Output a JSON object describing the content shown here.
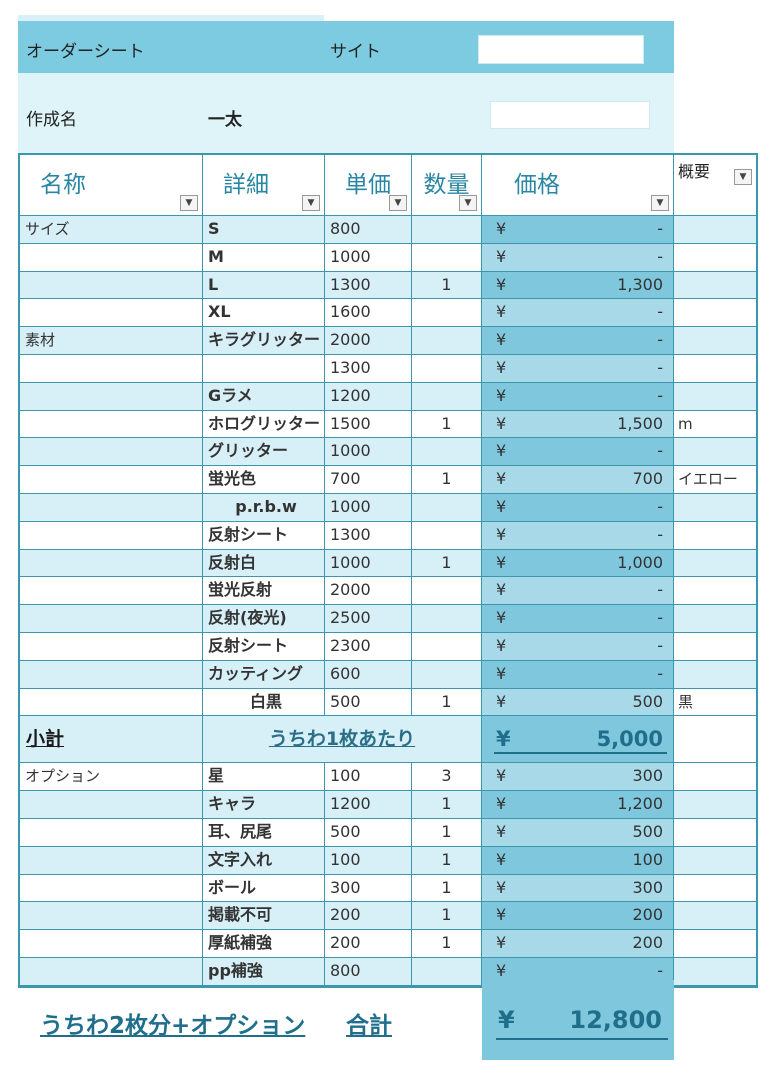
{
  "header": {
    "sheet_label": "オーダーシート",
    "site_label": "サイト",
    "creator_label": "作成名",
    "creator_value": "一太",
    "site_value": "",
    "extra_value": ""
  },
  "columns": {
    "name": "名称",
    "detail": "詳細",
    "unit_price": "単価",
    "quantity": "数量",
    "price": "価格",
    "summary": "概要",
    "filter_icon": "▼"
  },
  "currency": "¥",
  "rows": [
    {
      "name": "サイズ",
      "detail": "S",
      "unit": "800",
      "qty": "",
      "price": "-",
      "note": ""
    },
    {
      "name": "",
      "detail": "M",
      "unit": "1000",
      "qty": "",
      "price": "-",
      "note": ""
    },
    {
      "name": "",
      "detail": "L",
      "unit": "1300",
      "qty": "1",
      "price": "1,300",
      "note": ""
    },
    {
      "name": "",
      "detail": "XL",
      "unit": "1600",
      "qty": "",
      "price": "-",
      "note": ""
    },
    {
      "name": "素材",
      "detail": "キラグリッター",
      "unit": "2000",
      "qty": "",
      "price": "-",
      "note": ""
    },
    {
      "name": "",
      "detail": "",
      "unit": "1300",
      "qty": "",
      "price": "-",
      "note": ""
    },
    {
      "name": "",
      "detail": "Gラメ",
      "unit": "1200",
      "qty": "",
      "price": "-",
      "note": ""
    },
    {
      "name": "",
      "detail": "ホログリッター",
      "unit": "1500",
      "qty": "1",
      "price": "1,500",
      "note": "m"
    },
    {
      "name": "",
      "detail": "グリッター",
      "unit": "1000",
      "qty": "",
      "price": "-",
      "note": ""
    },
    {
      "name": "",
      "detail": "蛍光色",
      "unit": "700",
      "qty": "1",
      "price": "700",
      "note": "イエロー"
    },
    {
      "name": "",
      "detail": "p.r.b.w",
      "unit": "1000",
      "qty": "",
      "price": "-",
      "note": ""
    },
    {
      "name": "",
      "detail": "反射シート",
      "unit": "1300",
      "qty": "",
      "price": "-",
      "note": ""
    },
    {
      "name": "",
      "detail": "反射白",
      "unit": "1000",
      "qty": "1",
      "price": "1,000",
      "note": ""
    },
    {
      "name": "",
      "detail": "蛍光反射",
      "unit": "2000",
      "qty": "",
      "price": "-",
      "note": ""
    },
    {
      "name": "",
      "detail": "反射(夜光)",
      "unit": "2500",
      "qty": "",
      "price": "-",
      "note": ""
    },
    {
      "name": "",
      "detail": "反射シート",
      "unit": "2300",
      "qty": "",
      "price": "-",
      "note": ""
    },
    {
      "name": "",
      "detail": "カッティング",
      "unit": "600",
      "qty": "",
      "price": "-",
      "note": ""
    },
    {
      "name": "",
      "detail": "白黒",
      "unit": "500",
      "qty": "1",
      "price": "500",
      "note": "黒"
    }
  ],
  "subtotal": {
    "label": "小計",
    "desc": "うちわ1枚あたり",
    "amount": "5,000"
  },
  "options": [
    {
      "name": "オプション",
      "detail": "星",
      "unit": "100",
      "qty": "3",
      "price": "300",
      "note": ""
    },
    {
      "name": "",
      "detail": "キャラ",
      "unit": "1200",
      "qty": "1",
      "price": "1,200",
      "note": ""
    },
    {
      "name": "",
      "detail": "耳、尻尾",
      "unit": "500",
      "qty": "1",
      "price": "500",
      "note": ""
    },
    {
      "name": "",
      "detail": "文字入れ",
      "unit": "100",
      "qty": "1",
      "price": "100",
      "note": ""
    },
    {
      "name": "",
      "detail": "ボール",
      "unit": "300",
      "qty": "1",
      "price": "300",
      "note": ""
    },
    {
      "name": "",
      "detail": "掲載不可",
      "unit": "200",
      "qty": "1",
      "price": "200",
      "note": ""
    },
    {
      "name": "",
      "detail": "厚紙補強",
      "unit": "200",
      "qty": "1",
      "price": "200",
      "note": ""
    },
    {
      "name": "",
      "detail": "pp補強",
      "unit": "800",
      "qty": "",
      "price": "-",
      "note": ""
    }
  ],
  "footer": {
    "desc": "うちわ2枚分+オプション",
    "total_label": "合計",
    "total_amount": "12,800"
  }
}
